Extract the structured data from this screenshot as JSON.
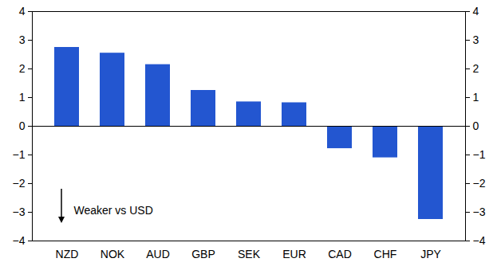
{
  "chart_data": {
    "type": "bar",
    "categories": [
      "NZD",
      "NOK",
      "AUD",
      "GBP",
      "SEK",
      "EUR",
      "CAD",
      "CHF",
      "JPY"
    ],
    "values": [
      2.75,
      2.55,
      2.15,
      1.25,
      0.85,
      0.82,
      -0.78,
      -1.1,
      -3.25
    ],
    "color": "#2356d0",
    "ylim": [
      -4,
      4
    ],
    "yticks": [
      -4,
      -3,
      -2,
      -1,
      0,
      1,
      2,
      3,
      4
    ],
    "grid": false,
    "annotation": "Weaker vs USD"
  }
}
